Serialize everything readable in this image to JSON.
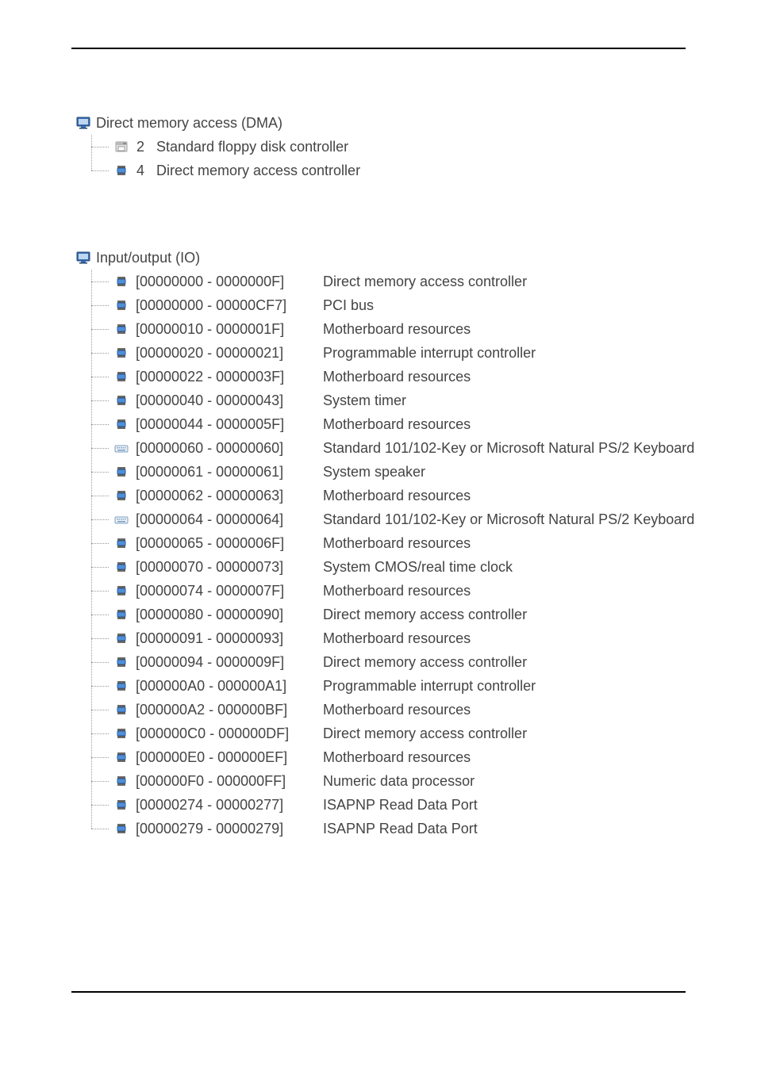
{
  "colors": {
    "text": "#444444",
    "rule": "#000000",
    "tree_line": "#9a9a9a",
    "chip_body": "#4f8fd8",
    "chip_pins": "#2a2a2a",
    "floppy_body": "#d9d9d9",
    "floppy_edge": "#9e9e9e",
    "keyboard_body": "#d9d9d9",
    "keyboard_edge": "#7a9ec2"
  },
  "dma": {
    "title": "Direct memory access (DMA)",
    "items": [
      {
        "icon": "floppy-icon",
        "channel": "2",
        "label": "Standard floppy disk controller"
      },
      {
        "icon": "chip-icon",
        "channel": "4",
        "label": "Direct memory access controller"
      }
    ]
  },
  "io": {
    "title": "Input/output (IO)",
    "items": [
      {
        "icon": "chip-icon",
        "range": "[00000000 - 0000000F]",
        "label": "Direct memory access controller"
      },
      {
        "icon": "chip-icon",
        "range": "[00000000 - 00000CF7]",
        "label": "PCI bus"
      },
      {
        "icon": "chip-icon",
        "range": "[00000010 - 0000001F]",
        "label": "Motherboard resources"
      },
      {
        "icon": "chip-icon",
        "range": "[00000020 - 00000021]",
        "label": "Programmable interrupt controller"
      },
      {
        "icon": "chip-icon",
        "range": "[00000022 - 0000003F]",
        "label": "Motherboard resources"
      },
      {
        "icon": "chip-icon",
        "range": "[00000040 - 00000043]",
        "label": "System timer"
      },
      {
        "icon": "chip-icon",
        "range": "[00000044 - 0000005F]",
        "label": "Motherboard resources"
      },
      {
        "icon": "keyboard-icon",
        "range": "[00000060 - 00000060]",
        "label": "Standard 101/102-Key or Microsoft Natural PS/2 Keyboard"
      },
      {
        "icon": "chip-icon",
        "range": "[00000061 - 00000061]",
        "label": "System speaker"
      },
      {
        "icon": "chip-icon",
        "range": "[00000062 - 00000063]",
        "label": "Motherboard resources"
      },
      {
        "icon": "keyboard-icon",
        "range": "[00000064 - 00000064]",
        "label": "Standard 101/102-Key or Microsoft Natural PS/2 Keyboard"
      },
      {
        "icon": "chip-icon",
        "range": "[00000065 - 0000006F]",
        "label": "Motherboard resources"
      },
      {
        "icon": "chip-icon",
        "range": "[00000070 - 00000073]",
        "label": "System CMOS/real time clock"
      },
      {
        "icon": "chip-icon",
        "range": "[00000074 - 0000007F]",
        "label": "Motherboard resources"
      },
      {
        "icon": "chip-icon",
        "range": "[00000080 - 00000090]",
        "label": "Direct memory access controller"
      },
      {
        "icon": "chip-icon",
        "range": "[00000091 - 00000093]",
        "label": "Motherboard resources"
      },
      {
        "icon": "chip-icon",
        "range": "[00000094 - 0000009F]",
        "label": "Direct memory access controller"
      },
      {
        "icon": "chip-icon",
        "range": "[000000A0 - 000000A1]",
        "label": "Programmable interrupt controller"
      },
      {
        "icon": "chip-icon",
        "range": "[000000A2 - 000000BF]",
        "label": "Motherboard resources"
      },
      {
        "icon": "chip-icon",
        "range": "[000000C0 - 000000DF]",
        "label": "Direct memory access controller"
      },
      {
        "icon": "chip-icon",
        "range": "[000000E0 - 000000EF]",
        "label": "Motherboard resources"
      },
      {
        "icon": "chip-icon",
        "range": "[000000F0 - 000000FF]",
        "label": "Numeric data processor"
      },
      {
        "icon": "chip-icon",
        "range": "[00000274 - 00000277]",
        "label": "ISAPNP Read Data Port"
      },
      {
        "icon": "chip-icon",
        "range": "[00000279 - 00000279]",
        "label": "ISAPNP Read Data Port"
      }
    ]
  }
}
